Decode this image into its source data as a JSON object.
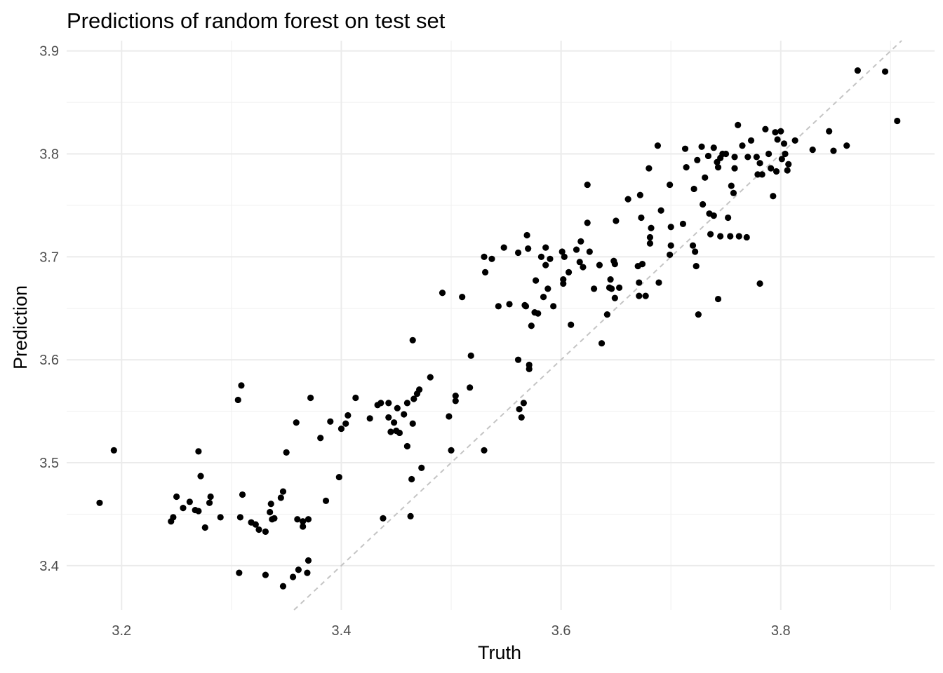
{
  "chart_data": {
    "type": "scatter",
    "title": "Predictions of random forest on test set",
    "xlabel": "Truth",
    "ylabel": "Prediction",
    "xlim": [
      3.15,
      3.94
    ],
    "ylim": [
      3.357,
      3.91
    ],
    "x_ticks": [
      "3.2",
      "3.4",
      "3.6",
      "3.8"
    ],
    "x_tick_values": [
      3.2,
      3.4,
      3.6,
      3.8
    ],
    "y_ticks": [
      "3.4",
      "3.5",
      "3.6",
      "3.7",
      "3.8",
      "3.9"
    ],
    "y_tick_values": [
      3.4,
      3.5,
      3.6,
      3.7,
      3.8,
      3.9
    ],
    "grid": true,
    "reference_line": "identity (y = x), dashed grey",
    "point_color": "#000000",
    "points": [
      [
        3.18,
        3.461
      ],
      [
        3.193,
        3.512
      ],
      [
        3.245,
        3.443
      ],
      [
        3.247,
        3.447
      ],
      [
        3.25,
        3.467
      ],
      [
        3.256,
        3.456
      ],
      [
        3.262,
        3.462
      ],
      [
        3.267,
        3.454
      ],
      [
        3.27,
        3.453
      ],
      [
        3.27,
        3.511
      ],
      [
        3.272,
        3.487
      ],
      [
        3.276,
        3.437
      ],
      [
        3.28,
        3.461
      ],
      [
        3.281,
        3.467
      ],
      [
        3.29,
        3.447
      ],
      [
        3.307,
        3.393
      ],
      [
        3.306,
        3.561
      ],
      [
        3.309,
        3.575
      ],
      [
        3.308,
        3.447
      ],
      [
        3.31,
        3.469
      ],
      [
        3.318,
        3.442
      ],
      [
        3.322,
        3.44
      ],
      [
        3.325,
        3.435
      ],
      [
        3.331,
        3.391
      ],
      [
        3.331,
        3.433
      ],
      [
        3.335,
        3.452
      ],
      [
        3.336,
        3.46
      ],
      [
        3.337,
        3.445
      ],
      [
        3.339,
        3.446
      ],
      [
        3.345,
        3.466
      ],
      [
        3.347,
        3.38
      ],
      [
        3.347,
        3.472
      ],
      [
        3.35,
        3.51
      ],
      [
        3.356,
        3.389
      ],
      [
        3.359,
        3.539
      ],
      [
        3.361,
        3.396
      ],
      [
        3.36,
        3.445
      ],
      [
        3.365,
        3.443
      ],
      [
        3.365,
        3.438
      ],
      [
        3.37,
        3.445
      ],
      [
        3.369,
        3.393
      ],
      [
        3.37,
        3.405
      ],
      [
        3.372,
        3.563
      ],
      [
        3.381,
        3.524
      ],
      [
        3.386,
        3.463
      ],
      [
        3.39,
        3.54
      ],
      [
        3.398,
        3.486
      ],
      [
        3.4,
        3.533
      ],
      [
        3.404,
        3.538
      ],
      [
        3.406,
        3.546
      ],
      [
        3.413,
        3.563
      ],
      [
        3.426,
        3.543
      ],
      [
        3.433,
        3.556
      ],
      [
        3.436,
        3.558
      ],
      [
        3.438,
        3.446
      ],
      [
        3.443,
        3.558
      ],
      [
        3.443,
        3.544
      ],
      [
        3.445,
        3.53
      ],
      [
        3.448,
        3.539
      ],
      [
        3.45,
        3.531
      ],
      [
        3.451,
        3.553
      ],
      [
        3.453,
        3.529
      ],
      [
        3.457,
        3.547
      ],
      [
        3.46,
        3.516
      ],
      [
        3.46,
        3.558
      ],
      [
        3.463,
        3.448
      ],
      [
        3.464,
        3.484
      ],
      [
        3.465,
        3.619
      ],
      [
        3.465,
        3.538
      ],
      [
        3.466,
        3.562
      ],
      [
        3.469,
        3.567
      ],
      [
        3.471,
        3.571
      ],
      [
        3.473,
        3.495
      ],
      [
        3.481,
        3.583
      ],
      [
        3.492,
        3.665
      ],
      [
        3.498,
        3.545
      ],
      [
        3.5,
        3.512
      ],
      [
        3.504,
        3.565
      ],
      [
        3.504,
        3.56
      ],
      [
        3.51,
        3.661
      ],
      [
        3.517,
        3.573
      ],
      [
        3.518,
        3.604
      ],
      [
        3.53,
        3.7
      ],
      [
        3.53,
        3.512
      ],
      [
        3.531,
        3.685
      ],
      [
        3.537,
        3.698
      ],
      [
        3.543,
        3.652
      ],
      [
        3.548,
        3.709
      ],
      [
        3.553,
        3.654
      ],
      [
        3.561,
        3.704
      ],
      [
        3.561,
        3.6
      ],
      [
        3.562,
        3.552
      ],
      [
        3.564,
        3.544
      ],
      [
        3.566,
        3.558
      ],
      [
        3.567,
        3.653
      ],
      [
        3.568,
        3.652
      ],
      [
        3.569,
        3.721
      ],
      [
        3.57,
        3.708
      ],
      [
        3.571,
        3.591
      ],
      [
        3.571,
        3.595
      ],
      [
        3.573,
        3.633
      ],
      [
        3.576,
        3.646
      ],
      [
        3.577,
        3.677
      ],
      [
        3.579,
        3.645
      ],
      [
        3.582,
        3.7
      ],
      [
        3.584,
        3.661
      ],
      [
        3.586,
        3.709
      ],
      [
        3.586,
        3.692
      ],
      [
        3.588,
        3.669
      ],
      [
        3.59,
        3.698
      ],
      [
        3.593,
        3.652
      ],
      [
        3.601,
        3.705
      ],
      [
        3.602,
        3.674
      ],
      [
        3.602,
        3.678
      ],
      [
        3.603,
        3.7
      ],
      [
        3.607,
        3.685
      ],
      [
        3.609,
        3.634
      ],
      [
        3.614,
        3.707
      ],
      [
        3.617,
        3.695
      ],
      [
        3.618,
        3.715
      ],
      [
        3.62,
        3.69
      ],
      [
        3.624,
        3.733
      ],
      [
        3.624,
        3.77
      ],
      [
        3.626,
        3.705
      ],
      [
        3.63,
        3.669
      ],
      [
        3.635,
        3.692
      ],
      [
        3.637,
        3.616
      ],
      [
        3.642,
        3.644
      ],
      [
        3.644,
        3.67
      ],
      [
        3.645,
        3.678
      ],
      [
        3.646,
        3.669
      ],
      [
        3.648,
        3.696
      ],
      [
        3.649,
        3.693
      ],
      [
        3.649,
        3.66
      ],
      [
        3.65,
        3.735
      ],
      [
        3.653,
        3.67
      ],
      [
        3.661,
        3.756
      ],
      [
        3.67,
        3.691
      ],
      [
        3.671,
        3.675
      ],
      [
        3.671,
        3.662
      ],
      [
        3.672,
        3.76
      ],
      [
        3.673,
        3.738
      ],
      [
        3.674,
        3.693
      ],
      [
        3.677,
        3.662
      ],
      [
        3.68,
        3.786
      ],
      [
        3.681,
        3.713
      ],
      [
        3.681,
        3.719
      ],
      [
        3.682,
        3.728
      ],
      [
        3.688,
        3.808
      ],
      [
        3.689,
        3.675
      ],
      [
        3.691,
        3.745
      ],
      [
        3.699,
        3.702
      ],
      [
        3.699,
        3.77
      ],
      [
        3.7,
        3.729
      ],
      [
        3.7,
        3.711
      ],
      [
        3.711,
        3.732
      ],
      [
        3.713,
        3.805
      ],
      [
        3.714,
        3.787
      ],
      [
        3.72,
        3.711
      ],
      [
        3.721,
        3.766
      ],
      [
        3.722,
        3.705
      ],
      [
        3.723,
        3.691
      ],
      [
        3.724,
        3.794
      ],
      [
        3.725,
        3.644
      ],
      [
        3.728,
        3.807
      ],
      [
        3.729,
        3.751
      ],
      [
        3.731,
        3.777
      ],
      [
        3.734,
        3.798
      ],
      [
        3.735,
        3.742
      ],
      [
        3.736,
        3.722
      ],
      [
        3.739,
        3.74
      ],
      [
        3.739,
        3.806
      ],
      [
        3.742,
        3.792
      ],
      [
        3.743,
        3.787
      ],
      [
        3.743,
        3.659
      ],
      [
        3.745,
        3.72
      ],
      [
        3.745,
        3.796
      ],
      [
        3.747,
        3.8
      ],
      [
        3.75,
        3.8
      ],
      [
        3.752,
        3.738
      ],
      [
        3.754,
        3.72
      ],
      [
        3.755,
        3.769
      ],
      [
        3.757,
        3.762
      ],
      [
        3.758,
        3.797
      ],
      [
        3.758,
        3.786
      ],
      [
        3.761,
        3.828
      ],
      [
        3.762,
        3.72
      ],
      [
        3.765,
        3.808
      ],
      [
        3.769,
        3.719
      ],
      [
        3.77,
        3.797
      ],
      [
        3.773,
        3.813
      ],
      [
        3.778,
        3.797
      ],
      [
        3.779,
        3.78
      ],
      [
        3.781,
        3.791
      ],
      [
        3.781,
        3.674
      ],
      [
        3.783,
        3.78
      ],
      [
        3.786,
        3.824
      ],
      [
        3.789,
        3.8
      ],
      [
        3.791,
        3.786
      ],
      [
        3.793,
        3.759
      ],
      [
        3.795,
        3.821
      ],
      [
        3.796,
        3.783
      ],
      [
        3.797,
        3.814
      ],
      [
        3.8,
        3.822
      ],
      [
        3.801,
        3.795
      ],
      [
        3.803,
        3.81
      ],
      [
        3.804,
        3.8
      ],
      [
        3.806,
        3.784
      ],
      [
        3.807,
        3.79
      ],
      [
        3.813,
        3.813
      ],
      [
        3.829,
        3.804
      ],
      [
        3.844,
        3.822
      ],
      [
        3.848,
        3.803
      ],
      [
        3.86,
        3.808
      ],
      [
        3.87,
        3.881
      ],
      [
        3.895,
        3.88
      ],
      [
        3.906,
        3.832
      ]
    ]
  }
}
